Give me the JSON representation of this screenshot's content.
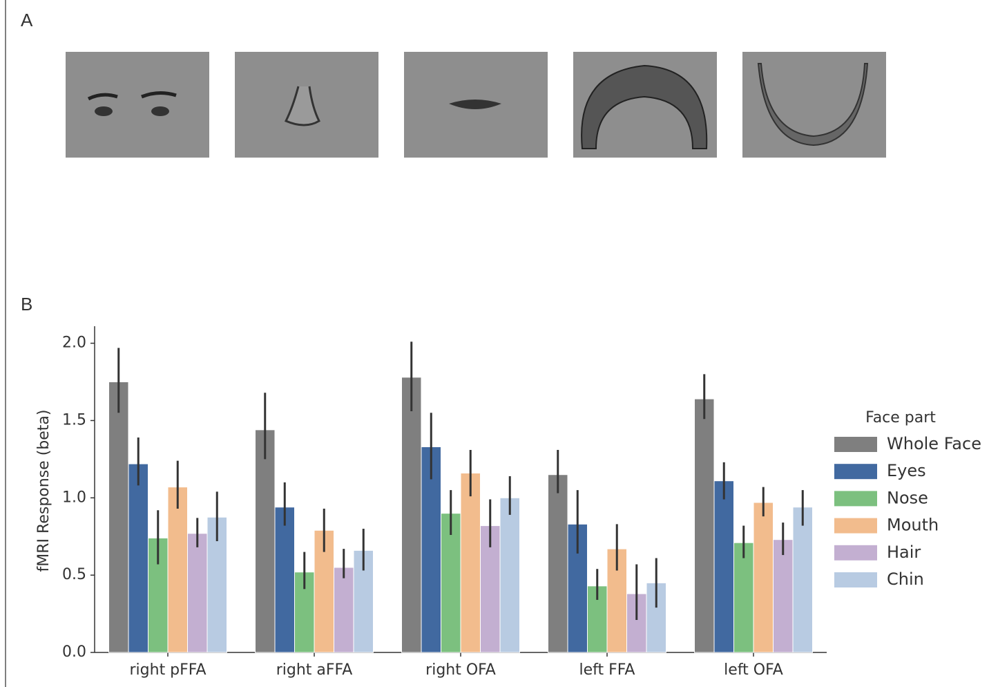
{
  "panel_a": {
    "label": "A"
  },
  "chart_data": {
    "type": "bar",
    "panel_label": "B",
    "ylabel": "fMRI Response (beta)",
    "categories": [
      "right pFFA",
      "right aFFA",
      "right OFA",
      "left FFA",
      "left OFA"
    ],
    "legend_title": "Face part",
    "legend": "right",
    "ylim": [
      0,
      2.11
    ],
    "yticks": [
      {
        "value": 0,
        "label": "0.0"
      },
      0.5,
      {
        "value": 1,
        "label": "1.0"
      },
      1.5,
      {
        "value": 2,
        "label": "2.0"
      }
    ],
    "series": [
      {
        "name": "Whole Face",
        "color": "#7f7f7f",
        "values": [
          1.75,
          1.44,
          1.78,
          1.15,
          1.64
        ],
        "ci_low": [
          1.55,
          1.25,
          1.56,
          1.03,
          1.51
        ],
        "ci_high": [
          1.97,
          1.68,
          2.01,
          1.31,
          1.8
        ]
      },
      {
        "name": "Eyes",
        "color": "#4169a0",
        "values": [
          1.22,
          0.94,
          1.33,
          0.83,
          1.11
        ],
        "ci_low": [
          1.08,
          0.82,
          1.12,
          0.64,
          0.99
        ],
        "ci_high": [
          1.39,
          1.1,
          1.55,
          1.05,
          1.23
        ]
      },
      {
        "name": "Nose",
        "color": "#7cc07f",
        "values": [
          0.74,
          0.52,
          0.9,
          0.43,
          0.71
        ],
        "ci_low": [
          0.57,
          0.41,
          0.76,
          0.34,
          0.61
        ],
        "ci_high": [
          0.92,
          0.65,
          1.05,
          0.54,
          0.82
        ]
      },
      {
        "name": "Mouth",
        "color": "#f2bc8d",
        "values": [
          1.07,
          0.79,
          1.16,
          0.67,
          0.97
        ],
        "ci_low": [
          0.93,
          0.65,
          1.01,
          0.53,
          0.88
        ],
        "ci_high": [
          1.24,
          0.93,
          1.31,
          0.83,
          1.07
        ]
      },
      {
        "name": "Hair",
        "color": "#c3afd1",
        "values": [
          0.77,
          0.55,
          0.82,
          0.38,
          0.73
        ],
        "ci_low": [
          0.68,
          0.48,
          0.68,
          0.21,
          0.63
        ],
        "ci_high": [
          0.87,
          0.67,
          0.99,
          0.57,
          0.84
        ]
      },
      {
        "name": "Chin",
        "color": "#b8cbe2",
        "values": [
          0.875,
          0.66,
          1.0,
          0.45,
          0.94
        ],
        "ci_low": [
          0.72,
          0.53,
          0.89,
          0.29,
          0.82
        ],
        "ci_high": [
          1.04,
          0.8,
          1.14,
          0.61,
          1.05
        ]
      }
    ]
  }
}
